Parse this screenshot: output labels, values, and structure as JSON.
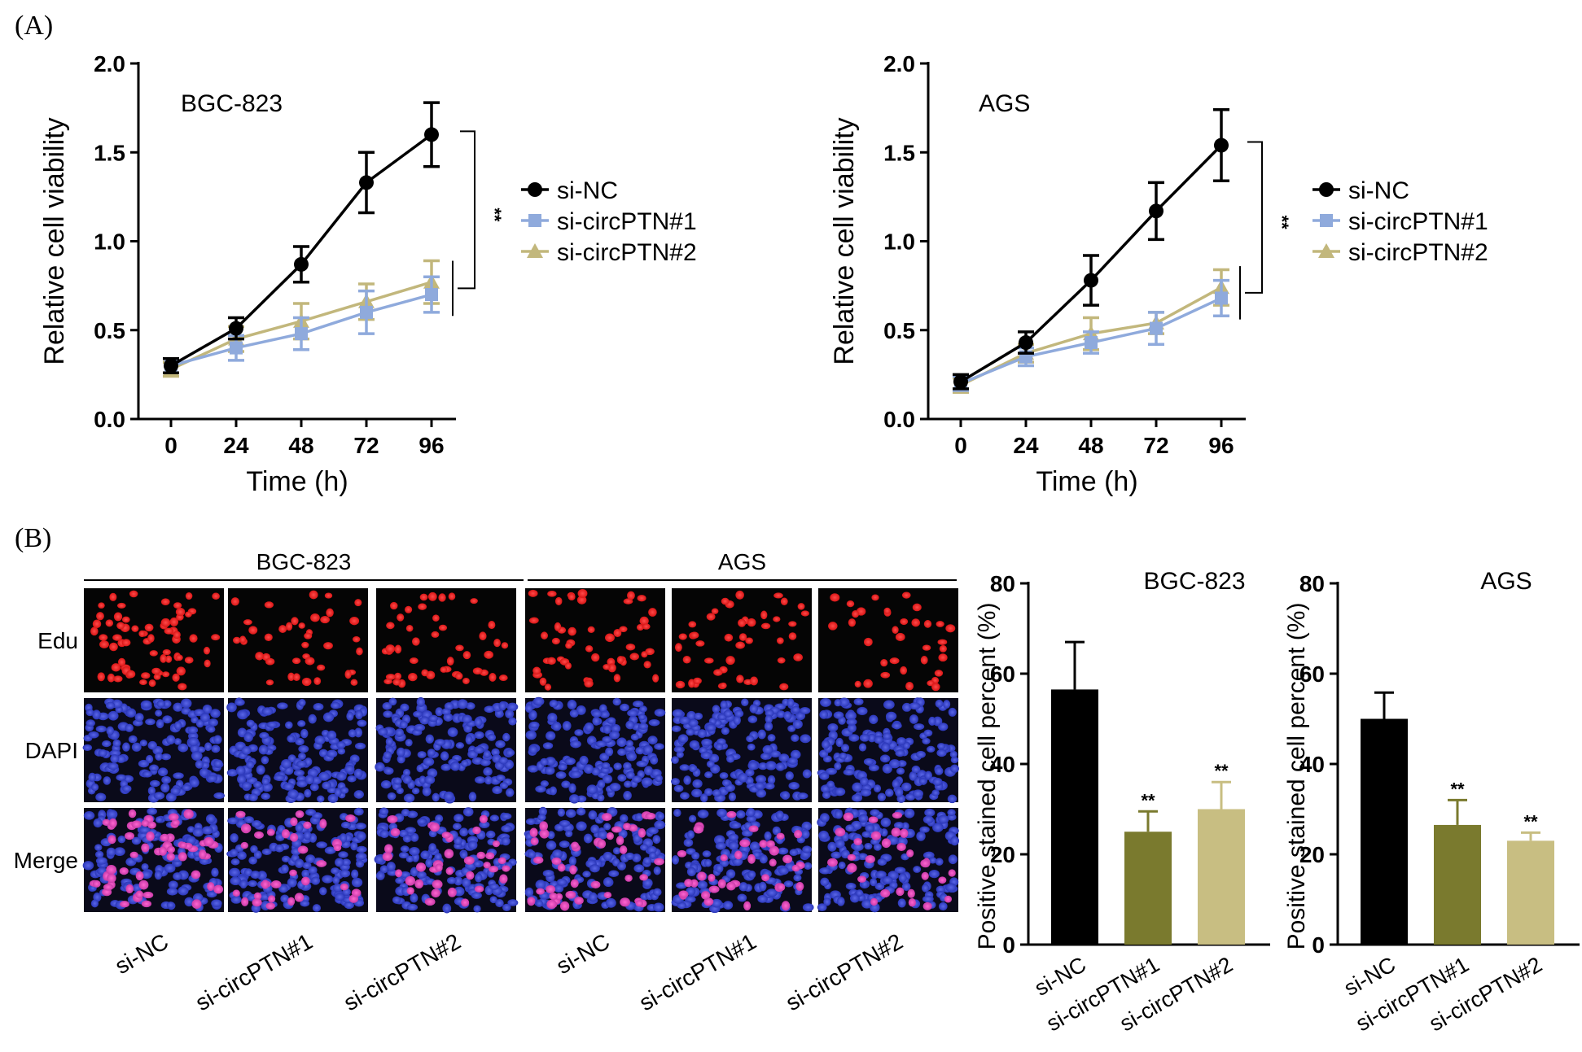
{
  "panels": {
    "a_label": "(A)",
    "b_label": "(B)"
  },
  "line_style": {
    "axis_title_x": "Time (h)",
    "axis_title_y": "Relative cell viability",
    "significance": "**",
    "series_colors": [
      "#000000",
      "#8FAADC",
      "#C2B77C"
    ]
  },
  "microscopy": {
    "groups": [
      "BGC-823",
      "AGS"
    ],
    "rows": [
      "Edu",
      "DAPI",
      "Merge"
    ],
    "columns": [
      "si-NC",
      "si-circPTN#1",
      "si-circPTN#2",
      "si-NC",
      "si-circPTN#1",
      "si-circPTN#2"
    ]
  },
  "bar_style": {
    "axis_title_y": "Positive stained cell percent (%)",
    "significance": "**",
    "bar_colors": [
      "#000000",
      "#7A7A2E",
      "#C8BE82"
    ]
  },
  "chart_data": [
    {
      "type": "line",
      "title": "BGC-823",
      "x": [
        0,
        24,
        48,
        72,
        96
      ],
      "xlabel": "Time (h)",
      "ylabel": "Relative cell viability",
      "ylim": [
        0,
        2.0
      ],
      "yticks": [
        0.0,
        0.5,
        1.0,
        1.5,
        2.0
      ],
      "yticklabels": [
        "0.0",
        "0.5",
        "1.0",
        "1.5",
        "2.0"
      ],
      "xticklabels": [
        "0",
        "24",
        "48",
        "72",
        "96"
      ],
      "legend_position": "right",
      "series": [
        {
          "name": "si-NC",
          "values": [
            0.3,
            0.51,
            0.87,
            1.33,
            1.6
          ],
          "errors": [
            0.04,
            0.06,
            0.1,
            0.17,
            0.18
          ]
        },
        {
          "name": "si-circPTN#1",
          "values": [
            0.3,
            0.4,
            0.48,
            0.6,
            0.7
          ],
          "errors": [
            0.04,
            0.07,
            0.09,
            0.12,
            0.1
          ]
        },
        {
          "name": "si-circPTN#2",
          "values": [
            0.28,
            0.45,
            0.55,
            0.66,
            0.77
          ],
          "errors": [
            0.04,
            0.07,
            0.1,
            0.1,
            0.12
          ]
        }
      ],
      "annotations": [
        "**"
      ]
    },
    {
      "type": "line",
      "title": "AGS",
      "x": [
        0,
        24,
        48,
        72,
        96
      ],
      "xlabel": "Time (h)",
      "ylabel": "Relative cell viability",
      "ylim": [
        0,
        2.0
      ],
      "yticks": [
        0.0,
        0.5,
        1.0,
        1.5,
        2.0
      ],
      "yticklabels": [
        "0.0",
        "0.5",
        "1.0",
        "1.5",
        "2.0"
      ],
      "xticklabels": [
        "0",
        "24",
        "48",
        "72",
        "96"
      ],
      "legend_position": "right",
      "series": [
        {
          "name": "si-NC",
          "values": [
            0.21,
            0.43,
            0.78,
            1.17,
            1.54
          ],
          "errors": [
            0.04,
            0.06,
            0.14,
            0.16,
            0.2
          ]
        },
        {
          "name": "si-circPTN#1",
          "values": [
            0.2,
            0.35,
            0.43,
            0.51,
            0.68
          ],
          "errors": [
            0.04,
            0.05,
            0.06,
            0.09,
            0.1
          ]
        },
        {
          "name": "si-circPTN#2",
          "values": [
            0.19,
            0.37,
            0.48,
            0.54,
            0.74
          ],
          "errors": [
            0.04,
            0.05,
            0.09,
            0.06,
            0.1
          ]
        }
      ],
      "annotations": [
        "**"
      ]
    },
    {
      "type": "bar",
      "title": "BGC-823",
      "categories": [
        "si-NC",
        "si-circPTN#1",
        "si-circPTN#2"
      ],
      "values": [
        56.5,
        25.0,
        30.0
      ],
      "errors": [
        10.5,
        4.5,
        6.0
      ],
      "ylabel": "Positive stained cell percent (%)",
      "ylim": [
        0,
        80
      ],
      "yticks": [
        0,
        20,
        40,
        60,
        80
      ],
      "yticklabels": [
        "0",
        "20",
        "40",
        "60",
        "80"
      ],
      "annotations": [
        "",
        "**",
        "**"
      ]
    },
    {
      "type": "bar",
      "title": "AGS",
      "categories": [
        "si-NC",
        "si-circPTN#1",
        "si-circPTN#2"
      ],
      "values": [
        50.0,
        26.5,
        23.0
      ],
      "errors": [
        5.8,
        5.5,
        1.8
      ],
      "ylabel": "Positive stained cell percent (%)",
      "ylim": [
        0,
        80
      ],
      "yticks": [
        0,
        20,
        40,
        60,
        80
      ],
      "yticklabels": [
        "0",
        "20",
        "40",
        "60",
        "80"
      ],
      "annotations": [
        "",
        "**",
        "**"
      ]
    }
  ]
}
